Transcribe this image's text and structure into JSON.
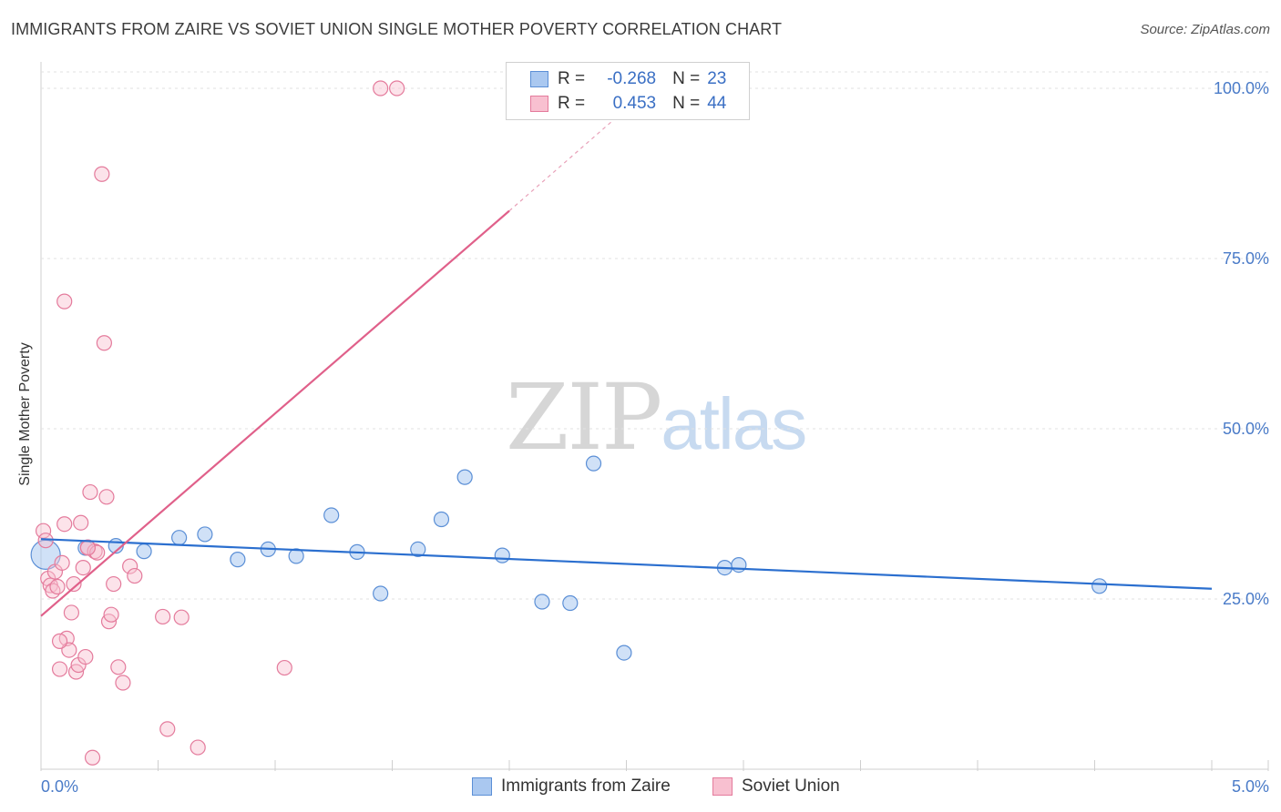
{
  "title": "IMMIGRANTS FROM ZAIRE VS SOVIET UNION SINGLE MOTHER POVERTY CORRELATION CHART",
  "source": "Source: ZipAtlas.com",
  "watermark": {
    "zip": "ZIP",
    "atlas": "atlas"
  },
  "legend": {
    "rows": [
      {
        "r_label": "R =",
        "r_value": "-0.268",
        "n_label": "N =",
        "n_value": "23",
        "color": "#aac8f0",
        "border": "#5b8fd6"
      },
      {
        "r_label": "R =",
        "r_value": "0.453",
        "n_label": "N =",
        "n_value": "44",
        "color": "#f8c0d0",
        "border": "#e47b9c"
      }
    ]
  },
  "chart_data": {
    "type": "scatter",
    "title": "IMMIGRANTS FROM ZAIRE VS SOVIET UNION SINGLE MOTHER POVERTY CORRELATION CHART",
    "xlabel": "",
    "ylabel": "Single Mother Poverty",
    "xlim": [
      0,
      5
    ],
    "ylim": [
      0,
      100
    ],
    "x_tick_labels": [
      "0.0%",
      "5.0%"
    ],
    "y_ticks": [
      25,
      50,
      75,
      100
    ],
    "y_tick_labels": [
      "25.0%",
      "50.0%",
      "75.0%",
      "100.0%"
    ],
    "grid": true,
    "series": [
      {
        "name": "Immigrants from Zaire",
        "color": "#aac8f0",
        "stroke": "#5b8fd6",
        "line_color": "#2b6fcf",
        "trend": {
          "x0": 0.0,
          "y0": 33.8,
          "x1": 5.0,
          "y1": 26.5
        },
        "points": [
          [
            0.02,
            31.5
          ],
          [
            0.19,
            32.5
          ],
          [
            0.32,
            32.8
          ],
          [
            0.44,
            32.0
          ],
          [
            0.59,
            34.0
          ],
          [
            0.7,
            34.5
          ],
          [
            0.84,
            30.8
          ],
          [
            0.97,
            32.3
          ],
          [
            1.09,
            31.3
          ],
          [
            1.24,
            37.3
          ],
          [
            1.35,
            31.9
          ],
          [
            1.45,
            25.8
          ],
          [
            1.61,
            32.3
          ],
          [
            1.71,
            36.7
          ],
          [
            1.81,
            42.9
          ],
          [
            1.97,
            31.4
          ],
          [
            2.14,
            24.6
          ],
          [
            2.26,
            24.4
          ],
          [
            2.36,
            44.9
          ],
          [
            2.49,
            17.1
          ],
          [
            2.92,
            29.6
          ],
          [
            2.98,
            30.0
          ],
          [
            4.52,
            26.9
          ]
        ],
        "sizes": [
          40,
          20,
          20,
          20,
          20,
          20,
          20,
          20,
          20,
          20,
          20,
          20,
          20,
          20,
          20,
          20,
          20,
          20,
          20,
          20,
          20,
          20,
          20
        ]
      },
      {
        "name": "Soviet Union",
        "color": "#f8c0d0",
        "stroke": "#e47b9c",
        "line_color": "#e0608a",
        "trend": {
          "x0": 0.0,
          "y0": 22.5,
          "x1": 2.0,
          "y1": 82.0
        },
        "trend_ext": {
          "x0": 2.0,
          "y0": 82.0,
          "x1": 2.6,
          "y1": 100.0
        },
        "points": [
          [
            0.01,
            35.0
          ],
          [
            0.02,
            33.6
          ],
          [
            0.03,
            28.0
          ],
          [
            0.04,
            27.0
          ],
          [
            0.05,
            26.2
          ],
          [
            0.06,
            29.0
          ],
          [
            0.07,
            26.8
          ],
          [
            0.08,
            14.7
          ],
          [
            0.09,
            30.3
          ],
          [
            0.1,
            36.0
          ],
          [
            0.11,
            19.2
          ],
          [
            0.12,
            17.5
          ],
          [
            0.13,
            23.0
          ],
          [
            0.14,
            27.2
          ],
          [
            0.15,
            14.3
          ],
          [
            0.16,
            15.3
          ],
          [
            0.17,
            36.2
          ],
          [
            0.18,
            29.6
          ],
          [
            0.19,
            16.5
          ],
          [
            0.2,
            32.6
          ],
          [
            0.21,
            40.7
          ],
          [
            0.22,
            1.7
          ],
          [
            0.23,
            32.0
          ],
          [
            0.24,
            31.8
          ],
          [
            0.26,
            87.4
          ],
          [
            0.27,
            62.6
          ],
          [
            0.28,
            40.0
          ],
          [
            0.29,
            21.7
          ],
          [
            0.3,
            22.7
          ],
          [
            0.31,
            27.2
          ],
          [
            0.33,
            15.0
          ],
          [
            0.35,
            12.7
          ],
          [
            0.38,
            29.8
          ],
          [
            0.4,
            28.4
          ],
          [
            0.52,
            22.4
          ],
          [
            0.54,
            5.9
          ],
          [
            0.6,
            22.3
          ],
          [
            0.67,
            3.2
          ],
          [
            0.1,
            68.7
          ],
          [
            1.04,
            14.9
          ],
          [
            1.45,
            100.0
          ],
          [
            1.52,
            100.0
          ],
          [
            0.2,
            32.5
          ],
          [
            0.08,
            18.8
          ]
        ],
        "sizes": [
          20,
          20,
          20,
          20,
          20,
          20,
          20,
          20,
          20,
          20,
          20,
          20,
          20,
          20,
          20,
          20,
          20,
          20,
          20,
          20,
          20,
          20,
          20,
          20,
          20,
          20,
          20,
          20,
          20,
          20,
          20,
          20,
          20,
          20,
          20,
          20,
          20,
          20,
          20,
          20,
          20,
          20,
          20,
          20
        ]
      }
    ]
  }
}
